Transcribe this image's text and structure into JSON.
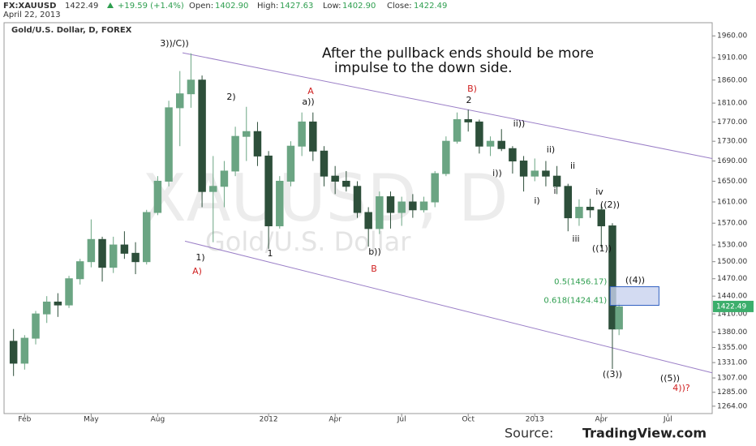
{
  "chart_data": {
    "type": "candlestick",
    "header": {
      "symbol": "FX:XAUUSD",
      "price": "1422.49",
      "change": "+19.59 (+1.4%)",
      "open_label": "Open:",
      "open": "1402.90",
      "high_label": "High:",
      "high": "1427.63",
      "low_label": "Low:",
      "low": "1402.90",
      "close_label": "Close:",
      "close": "1422.49",
      "date": "April 22, 2013"
    },
    "subtitle": "Gold/U.S. Dollar, D, FOREX",
    "watermark": [
      "XAUUSD, D",
      "Gold/U.S. Dollar"
    ],
    "note": [
      "After the pullback ends should be more",
      "impulse to the down side."
    ],
    "source_label": "Source:",
    "source": "TradingView.com",
    "log_scale": true,
    "up_color": "#6ba583",
    "down_color": "#2d4f3a",
    "x": [
      0.5,
      1,
      1.5,
      2,
      2.5,
      3,
      3.5,
      4,
      4.5,
      5,
      5.5,
      6,
      6.5,
      7,
      7.5,
      8,
      8.5,
      9,
      9.5,
      10,
      10.5,
      11,
      11.5,
      12,
      12.5,
      13,
      13.5,
      14,
      14.5,
      15,
      15.5,
      16,
      16.5,
      17,
      17.5,
      18,
      18.5,
      19,
      19.5,
      20,
      20.5,
      21,
      21.5,
      22,
      22.5,
      23,
      23.5,
      24,
      24.5,
      25,
      25.5,
      26,
      26.5,
      27,
      27.5,
      27.8
    ],
    "open": [
      1365,
      1330,
      1370,
      1410,
      1430,
      1425,
      1470,
      1500,
      1540,
      1490,
      1530,
      1515,
      1500,
      1590,
      1650,
      1800,
      1830,
      1860,
      1630,
      1640,
      1670,
      1740,
      1750,
      1700,
      1565,
      1650,
      1720,
      1770,
      1710,
      1660,
      1650,
      1640,
      1590,
      1560,
      1620,
      1590,
      1610,
      1595,
      1610,
      1665,
      1730,
      1775,
      1770,
      1720,
      1730,
      1715,
      1690,
      1660,
      1670,
      1660,
      1640,
      1580,
      1600,
      1595,
      1565,
      1385
    ],
    "high": [
      1385,
      1375,
      1415,
      1440,
      1445,
      1475,
      1505,
      1577,
      1545,
      1545,
      1555,
      1535,
      1595,
      1660,
      1815,
      1880,
      1920,
      1870,
      1700,
      1690,
      1760,
      1802,
      1770,
      1710,
      1660,
      1730,
      1790,
      1790,
      1720,
      1680,
      1670,
      1650,
      1600,
      1630,
      1630,
      1620,
      1625,
      1620,
      1670,
      1740,
      1790,
      1796,
      1775,
      1740,
      1755,
      1720,
      1700,
      1695,
      1690,
      1680,
      1645,
      1615,
      1616,
      1605,
      1570,
      1428
    ],
    "low": [
      1310,
      1320,
      1360,
      1395,
      1405,
      1420,
      1460,
      1490,
      1465,
      1480,
      1505,
      1478,
      1495,
      1585,
      1640,
      1720,
      1800,
      1600,
      1535,
      1600,
      1660,
      1690,
      1680,
      1523,
      1560,
      1640,
      1700,
      1690,
      1640,
      1625,
      1630,
      1580,
      1527,
      1550,
      1560,
      1565,
      1580,
      1590,
      1600,
      1660,
      1725,
      1750,
      1705,
      1700,
      1710,
      1665,
      1630,
      1650,
      1640,
      1625,
      1555,
      1565,
      1580,
      1525,
      1321,
      1375
    ],
    "close": [
      1330,
      1370,
      1410,
      1430,
      1425,
      1470,
      1500,
      1540,
      1490,
      1530,
      1515,
      1500,
      1590,
      1650,
      1800,
      1830,
      1860,
      1630,
      1640,
      1670,
      1740,
      1750,
      1700,
      1565,
      1650,
      1720,
      1770,
      1710,
      1660,
      1650,
      1640,
      1590,
      1560,
      1620,
      1590,
      1610,
      1595,
      1610,
      1665,
      1730,
      1775,
      1770,
      1720,
      1730,
      1715,
      1690,
      1660,
      1670,
      1660,
      1640,
      1580,
      1600,
      1595,
      1565,
      1385,
      1422
    ],
    "xlim": [
      0,
      32
    ],
    "xticks": [
      {
        "value": 1,
        "label": "Feb"
      },
      {
        "value": 4,
        "label": "May"
      },
      {
        "value": 7,
        "label": "Aug"
      },
      {
        "value": 12,
        "label": "2012"
      },
      {
        "value": 15,
        "label": "Apr"
      },
      {
        "value": 18,
        "label": "Jul"
      },
      {
        "value": 21,
        "label": "Oct"
      },
      {
        "value": 24,
        "label": "2013"
      },
      {
        "value": 27,
        "label": "Apr"
      },
      {
        "value": 30,
        "label": "Jul"
      }
    ],
    "ylim": [
      1253,
      1987
    ],
    "yticks": [
      {
        "value": 1960,
        "label": "1960.00"
      },
      {
        "value": 1910,
        "label": "1910.00"
      },
      {
        "value": 1860,
        "label": "1860.00"
      },
      {
        "value": 1810,
        "label": "1810.00"
      },
      {
        "value": 1770,
        "label": "1770.00"
      },
      {
        "value": 1730,
        "label": "1730.00"
      },
      {
        "value": 1690,
        "label": "1690.00"
      },
      {
        "value": 1650,
        "label": "1650.00"
      },
      {
        "value": 1610,
        "label": "1610.00"
      },
      {
        "value": 1570,
        "label": "1570.00"
      },
      {
        "value": 1530,
        "label": "1530.00"
      },
      {
        "value": 1500,
        "label": "1500.00"
      },
      {
        "value": 1470,
        "label": "1470.00"
      },
      {
        "value": 1440,
        "label": "1440.00"
      },
      {
        "value": 1410,
        "label": "1410.00"
      },
      {
        "value": 1380,
        "label": "1380.00"
      },
      {
        "value": 1355,
        "label": "1355.00"
      },
      {
        "value": 1331,
        "label": "1331.00"
      },
      {
        "value": 1307,
        "label": "1307.00"
      },
      {
        "value": 1285,
        "label": "1285.00"
      },
      {
        "value": 1264,
        "label": "1264.00"
      }
    ],
    "last_price": {
      "value": 1422.49,
      "label": "1422.49",
      "color": "#3cae6c"
    },
    "trendlines": [
      {
        "x": [
          8.12,
          32
        ],
        "y": [
          1921,
          1695
        ],
        "color": "#9b7fc7"
      },
      {
        "x": [
          8.23,
          32
        ],
        "y": [
          1537,
          1315
        ],
        "color": "#9b7fc7"
      }
    ],
    "fib": {
      "x": [
        27.4,
        29.6
      ],
      "color": "#3060c0",
      "fill": "#c8d2ef",
      "label_color": "#2e9e4f",
      "levels": [
        {
          "value": 1456.17,
          "label": "0.5(1456.17)"
        },
        {
          "value": 1424.41,
          "label": "0.618(1424.41)"
        }
      ]
    },
    "annotations": [
      {
        "text": "3))/C))",
        "color": "#111"
      },
      {
        "text": "2)",
        "color": "#111"
      },
      {
        "text": "A",
        "color": "#d02020"
      },
      {
        "text": "a))",
        "color": "#111"
      },
      {
        "text": "B)",
        "color": "#d02020"
      },
      {
        "text": "2",
        "color": "#111"
      },
      {
        "text": "ii))",
        "color": "#111"
      },
      {
        "text": "i))",
        "color": "#111"
      },
      {
        "text": "ii)",
        "color": "#111"
      },
      {
        "text": "ii",
        "color": "#111"
      },
      {
        "text": "i)",
        "color": "#111"
      },
      {
        "text": "i",
        "color": "#111"
      },
      {
        "text": "iv",
        "color": "#111"
      },
      {
        "text": "((2))",
        "color": "#111"
      },
      {
        "text": "iii",
        "color": "#111"
      },
      {
        "text": "((1))",
        "color": "#111"
      },
      {
        "text": "1)",
        "color": "#111"
      },
      {
        "text": "A)",
        "color": "#d02020"
      },
      {
        "text": "1",
        "color": "#111"
      },
      {
        "text": "b))",
        "color": "#111"
      },
      {
        "text": "B",
        "color": "#d02020"
      },
      {
        "text": "((4))",
        "color": "#111"
      },
      {
        "text": "((3))",
        "color": "#111"
      },
      {
        "text": "((5))",
        "color": "#111"
      },
      {
        "text": "4))?",
        "color": "#d02020"
      }
    ]
  }
}
